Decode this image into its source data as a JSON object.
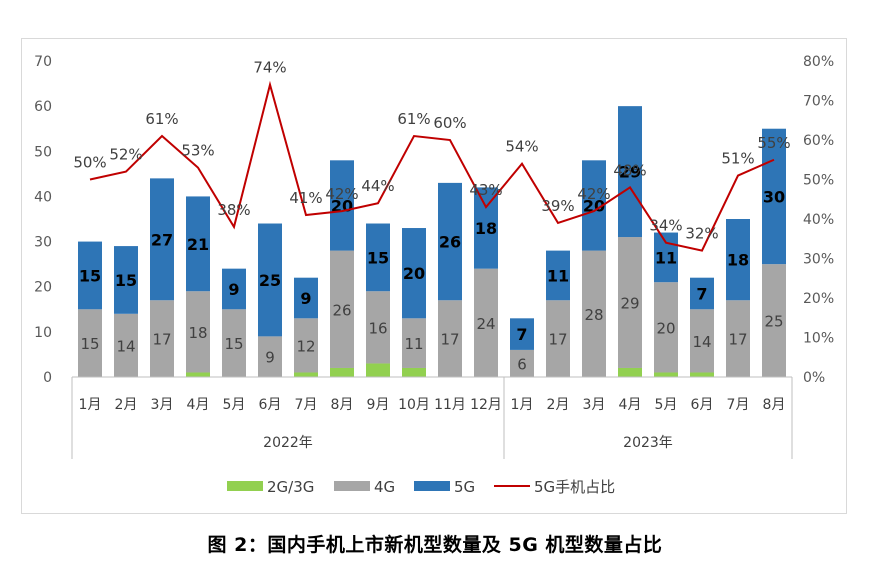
{
  "caption": "图 2：国内手机上市新机型数量及 5G 机型数量占比",
  "chart_data": {
    "type": "bar",
    "stacked": true,
    "categories": [
      "1月",
      "2月",
      "3月",
      "4月",
      "5月",
      "6月",
      "7月",
      "8月",
      "9月",
      "10月",
      "11月",
      "12月",
      "1月",
      "2月",
      "3月",
      "4月",
      "5月",
      "6月",
      "7月",
      "8月"
    ],
    "groups": [
      {
        "label": "2022年",
        "span": 12
      },
      {
        "label": "2023年",
        "span": 8
      }
    ],
    "series": [
      {
        "name": "2G/3G",
        "color": "#92d050",
        "values": [
          0,
          0,
          0,
          1,
          0,
          0,
          1,
          2,
          3,
          2,
          0,
          0,
          0,
          0,
          0,
          2,
          1,
          1,
          0,
          0
        ],
        "labels": false
      },
      {
        "name": "4G",
        "color": "#a6a6a6",
        "values": [
          15,
          14,
          17,
          18,
          15,
          9,
          12,
          26,
          16,
          11,
          17,
          24,
          6,
          17,
          28,
          29,
          20,
          14,
          17,
          25
        ],
        "labels": true
      },
      {
        "name": "5G",
        "color": "#2e75b6",
        "values": [
          15,
          15,
          27,
          21,
          9,
          25,
          9,
          20,
          15,
          20,
          26,
          18,
          7,
          11,
          20,
          29,
          11,
          7,
          18,
          30
        ],
        "labels": true
      }
    ],
    "line": {
      "name": "5G手机占比",
      "color": "#c00000",
      "axis": "right",
      "values": [
        50,
        52,
        61,
        53,
        38,
        74,
        41,
        42,
        44,
        61,
        60,
        43,
        54,
        39,
        42,
        48,
        34,
        32,
        51,
        55
      ],
      "labels": [
        "50%",
        "52%",
        "61%",
        "53%",
        "38%",
        "74%",
        "41%",
        "42%",
        "44%",
        "61%",
        "60%",
        "43%",
        "54%",
        "39%",
        "42%",
        "48%",
        "34%",
        "32%",
        "51%",
        "55%"
      ]
    },
    "y_left": {
      "min": 0,
      "max": 70,
      "step": 10,
      "ticks": [
        "0",
        "10",
        "20",
        "30",
        "40",
        "50",
        "60",
        "70"
      ]
    },
    "y_right": {
      "min": 0,
      "max": 80,
      "step": 10,
      "ticks": [
        "0%",
        "10%",
        "20%",
        "30%",
        "40%",
        "50%",
        "60%",
        "70%",
        "80%"
      ]
    },
    "legend_position": "bottom",
    "grid": false
  }
}
